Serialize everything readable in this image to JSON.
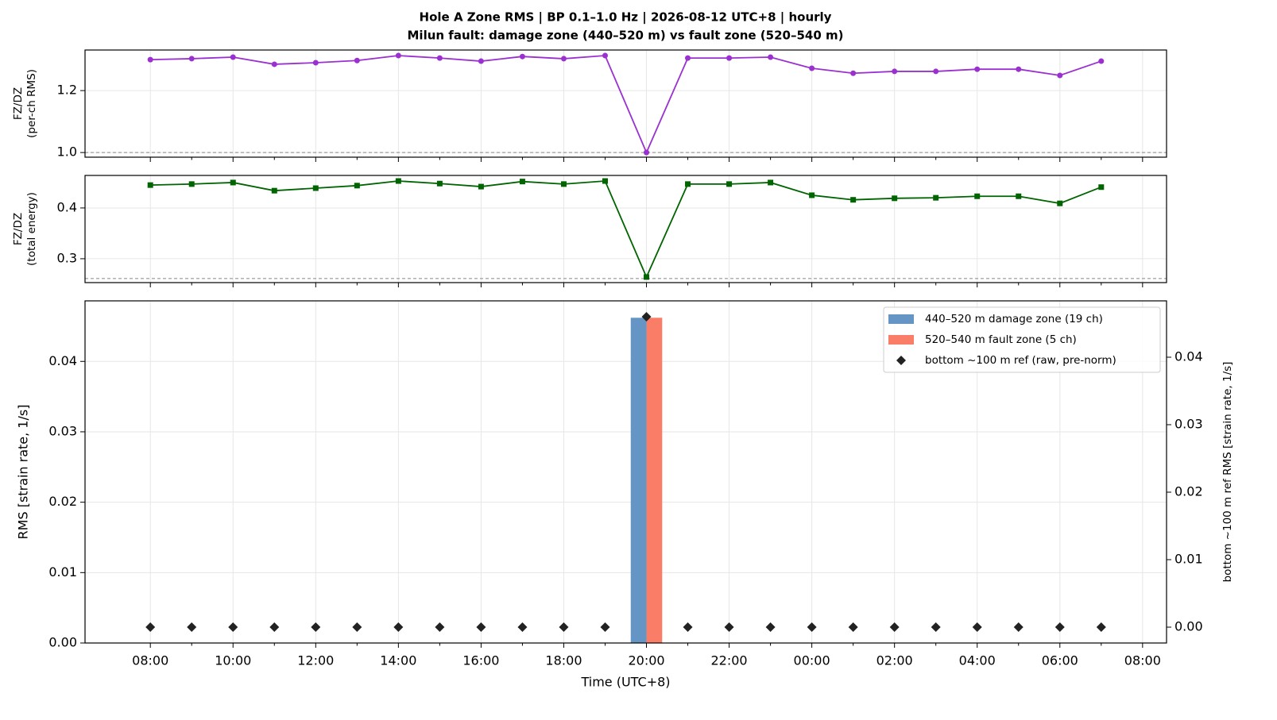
{
  "chart_data": [
    {
      "type": "line",
      "title": "Hole A Zone RMS  |  BP 0.1–1.0 Hz  |  2026-08-12 UTC+8  |  hourly",
      "subtitle": "Milun fault: damage zone (440–520 m) vs fault zone (520–540 m)",
      "ylabel": [
        "FZ/DZ",
        "(per-ch RMS)"
      ],
      "color": "#9b30d0",
      "marker": "circle",
      "values": [
        1.3,
        1.303,
        1.308,
        1.285,
        1.29,
        1.297,
        1.313,
        1.305,
        1.295,
        1.31,
        1.303,
        1.313,
        1.0,
        1.305,
        1.305,
        1.308,
        1.272,
        1.256,
        1.262,
        1.262,
        1.269,
        1.269,
        1.249,
        1.295
      ],
      "ylim": [
        0.985,
        1.331
      ],
      "yticks": [
        {
          "value": 1.0,
          "label": "1.0"
        },
        1.2
      ],
      "refline": 1.0,
      "grid": true
    },
    {
      "type": "line",
      "ylabel": [
        "FZ/DZ",
        "(total energy)"
      ],
      "color": "#006400",
      "marker": "square",
      "values": [
        0.445,
        0.447,
        0.45,
        0.434,
        0.439,
        0.444,
        0.453,
        0.448,
        0.442,
        0.452,
        0.447,
        0.453,
        0.264,
        0.447,
        0.447,
        0.45,
        0.425,
        0.416,
        0.419,
        0.42,
        0.423,
        0.423,
        0.409,
        0.441
      ],
      "ylim": [
        0.253,
        0.464
      ],
      "yticks": [
        0.3,
        0.4
      ],
      "refline": 0.261,
      "grid": true
    },
    {
      "type": "bar",
      "xlabel": "Time (UTC+8)",
      "ylabel": "RMS  [strain rate, 1/s]",
      "y2label": "bottom ~100 m ref RMS  [strain rate, 1/s]",
      "x": [
        0,
        1,
        2,
        3,
        4,
        5,
        6,
        7,
        8,
        9,
        10,
        11,
        12,
        13,
        14,
        15,
        16,
        17,
        18,
        19,
        20,
        21,
        22,
        23
      ],
      "xlim": [
        -1.58,
        24.58
      ],
      "xticks": [
        {
          "value": 0,
          "label": "08:00"
        },
        {
          "value": 2,
          "label": "10:00"
        },
        {
          "value": 4,
          "label": "12:00"
        },
        {
          "value": 6,
          "label": "14:00"
        },
        {
          "value": 8,
          "label": "16:00"
        },
        {
          "value": 10,
          "label": "18:00"
        },
        {
          "value": 12,
          "label": "20:00"
        },
        {
          "value": 14,
          "label": "22:00"
        },
        {
          "value": 16,
          "label": "00:00"
        },
        {
          "value": 18,
          "label": "02:00"
        },
        {
          "value": 20,
          "label": "04:00"
        },
        {
          "value": 22,
          "label": "06:00"
        },
        {
          "value": 24,
          "label": "08:00"
        }
      ],
      "xminorticks": [
        1,
        3,
        5,
        7,
        9,
        11,
        13,
        15,
        17,
        19,
        21,
        23
      ],
      "series": [
        {
          "name": "440–520 m  damage zone (19 ch)",
          "color": "#6495c4",
          "values": [
            0,
            0,
            0,
            0,
            0,
            0,
            0,
            0,
            0,
            0,
            0,
            0,
            0.0462,
            0,
            0,
            0,
            0,
            0,
            0,
            0,
            0,
            0,
            0,
            0
          ]
        },
        {
          "name": "520–540 m  fault zone (5 ch)",
          "color": "#fa7d68",
          "values": [
            0,
            0,
            0,
            0,
            0,
            0,
            0,
            0,
            0,
            0,
            0,
            0,
            0.0462,
            0,
            0,
            0,
            0,
            0,
            0,
            0,
            0,
            0,
            0,
            0
          ]
        },
        {
          "name": "bottom ~100 m ref (raw, pre-norm)",
          "color": "#222222",
          "axis": "y2",
          "marker": "diamond",
          "values": [
            0,
            0,
            0,
            0,
            0,
            0,
            0,
            0,
            0,
            0,
            0,
            0,
            0.046,
            0,
            0,
            0,
            0,
            0,
            0,
            0,
            0,
            0,
            0,
            0
          ]
        }
      ],
      "ylim": [
        0,
        0.0486
      ],
      "yticks": [
        {
          "value": 0,
          "label": "0.00"
        },
        {
          "value": 0.01,
          "label": "0.01"
        },
        {
          "value": 0.02,
          "label": "0.02"
        },
        {
          "value": 0.03,
          "label": "0.03"
        },
        {
          "value": 0.04,
          "label": "0.04"
        }
      ],
      "y2lim": [
        -0.00235,
        0.04835
      ],
      "y2ticks": [
        {
          "value": 0,
          "label": "0.00"
        },
        {
          "value": 0.01,
          "label": "0.01"
        },
        {
          "value": 0.02,
          "label": "0.02"
        },
        {
          "value": 0.03,
          "label": "0.03"
        },
        {
          "value": 0.04,
          "label": "0.04"
        }
      ],
      "grid": true,
      "legend": "upper right"
    }
  ]
}
